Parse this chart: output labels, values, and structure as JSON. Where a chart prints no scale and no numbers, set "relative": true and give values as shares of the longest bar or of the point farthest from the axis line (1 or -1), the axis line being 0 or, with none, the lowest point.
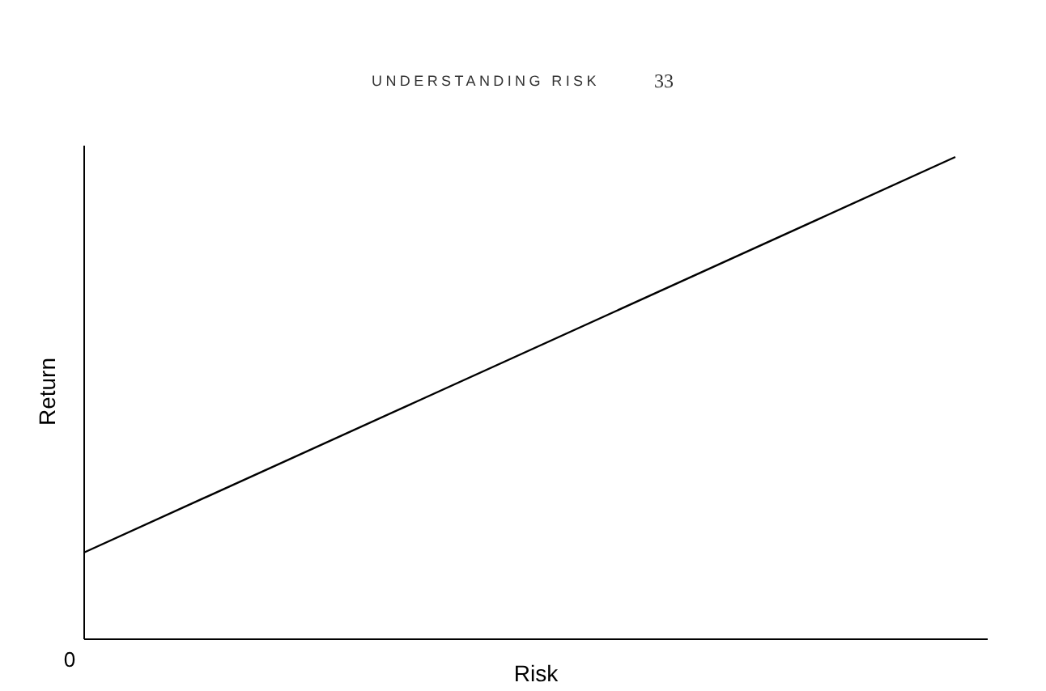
{
  "chart_data": {
    "type": "line",
    "xlabel": "Risk",
    "ylabel": "Return",
    "relative": true,
    "categories": [
      null,
      null
    ],
    "series": [
      {
        "color": "#000000",
        "values": [
          0.18,
          1
        ]
      }
    ],
    "annotations": [
      "UNDERSTANDING RISK",
      "33",
      "0"
    ]
  }
}
